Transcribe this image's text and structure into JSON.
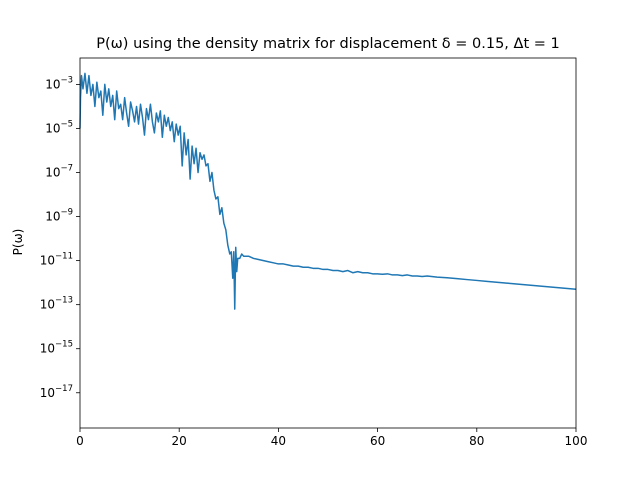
{
  "chart_data": {
    "type": "line",
    "title": "P(ω) using the density matrix for displacement δ = 0.15, Δt = 1",
    "xlabel": "",
    "ylabel": "P(ω)",
    "xlim": [
      0,
      100
    ],
    "ylim_log10": [
      -18.6,
      -1.8
    ],
    "yscale": "log",
    "grid": false,
    "x_ticks": [
      0,
      20,
      40,
      60,
      80,
      100
    ],
    "x_tick_labels": [
      "0",
      "20",
      "40",
      "60",
      "80",
      "100"
    ],
    "y_ticks_log10": [
      -3,
      -5,
      -7,
      -9,
      -11,
      -13,
      -15,
      -17
    ],
    "y_tick_labels": [
      {
        "base": "10",
        "exp": "−3"
      },
      {
        "base": "10",
        "exp": "−5"
      },
      {
        "base": "10",
        "exp": "−7"
      },
      {
        "base": "10",
        "exp": "−9"
      },
      {
        "base": "10",
        "exp": "−11"
      },
      {
        "base": "10",
        "exp": "−13"
      },
      {
        "base": "10",
        "exp": "−15"
      },
      {
        "base": "10",
        "exp": "−17"
      }
    ],
    "series": [
      {
        "color": "#1f77b4",
        "x": [
          0,
          0.1,
          0.3,
          0.6,
          1.0,
          1.4,
          1.8,
          2.2,
          2.6,
          3.0,
          3.4,
          3.8,
          4.2,
          4.6,
          5.0,
          5.4,
          5.8,
          6.2,
          6.6,
          7.0,
          7.4,
          7.8,
          8.2,
          8.6,
          9.0,
          9.4,
          9.8,
          10.2,
          10.6,
          11.0,
          11.4,
          11.8,
          12.2,
          12.6,
          13.0,
          13.4,
          13.8,
          14.2,
          14.6,
          15.0,
          15.4,
          15.8,
          16.2,
          16.6,
          17.0,
          17.4,
          17.8,
          18.2,
          18.6,
          19.0,
          19.4,
          19.8,
          20.2,
          20.6,
          21.0,
          21.4,
          21.8,
          22.2,
          22.6,
          23.0,
          23.4,
          23.8,
          24.2,
          24.6,
          25.0,
          25.4,
          25.8,
          26.2,
          26.6,
          27.0,
          27.4,
          27.8,
          28.2,
          28.6,
          29.0,
          29.4,
          29.8,
          30.2,
          30.5,
          30.8,
          31.0,
          31.2,
          31.4,
          31.6,
          31.8,
          32.2,
          32.6,
          33.0,
          33.4,
          34.0,
          35.0,
          36.0,
          37.0,
          38.0,
          39.0,
          40.0,
          41.0,
          42.0,
          43.0,
          44.0,
          45.0,
          46.0,
          47.0,
          48.0,
          49.0,
          50.0,
          51.0,
          52.0,
          53.0,
          54.0,
          55.0,
          56.0,
          57.0,
          58.0,
          59.0,
          60.0,
          61.0,
          62.0,
          63.0,
          64.0,
          65.0,
          66.0,
          67.0,
          68.0,
          69.0,
          70.0,
          72.0,
          74.0,
          76.0,
          78.0,
          80.0,
          82.0,
          84.0,
          86.0,
          88.0,
          90.0,
          92.0,
          94.0,
          96.0,
          98.0,
          100.0
        ],
        "log10_y": [
          -5.0,
          -3.6,
          -2.6,
          -3.2,
          -2.5,
          -3.4,
          -2.6,
          -3.5,
          -3.0,
          -4.0,
          -2.9,
          -3.6,
          -3.3,
          -4.4,
          -3.0,
          -3.8,
          -3.2,
          -4.0,
          -3.5,
          -4.6,
          -3.3,
          -4.1,
          -3.9,
          -4.6,
          -3.6,
          -4.3,
          -4.9,
          -3.8,
          -4.2,
          -4.7,
          -4.0,
          -4.8,
          -3.9,
          -4.5,
          -5.3,
          -4.1,
          -4.6,
          -3.9,
          -4.7,
          -5.2,
          -4.3,
          -4.7,
          -4.2,
          -5.4,
          -4.4,
          -4.9,
          -4.5,
          -5.1,
          -4.7,
          -5.6,
          -4.8,
          -5.3,
          -4.9,
          -6.7,
          -5.2,
          -6.2,
          -5.5,
          -7.3,
          -5.8,
          -6.6,
          -5.9,
          -7.0,
          -6.1,
          -6.4,
          -6.2,
          -6.7,
          -6.6,
          -7.4,
          -7.0,
          -7.8,
          -8.2,
          -8.1,
          -8.9,
          -8.6,
          -9.3,
          -9.6,
          -10.3,
          -10.7,
          -10.6,
          -11.8,
          -10.6,
          -13.2,
          -10.4,
          -11.5,
          -10.9,
          -10.9,
          -10.7,
          -10.8,
          -10.8,
          -10.8,
          -10.9,
          -10.95,
          -11.0,
          -11.05,
          -11.1,
          -11.15,
          -11.15,
          -11.2,
          -11.25,
          -11.25,
          -11.3,
          -11.3,
          -11.35,
          -11.35,
          -11.4,
          -11.4,
          -11.45,
          -11.45,
          -11.5,
          -11.45,
          -11.55,
          -11.5,
          -11.55,
          -11.55,
          -11.6,
          -11.6,
          -11.62,
          -11.6,
          -11.65,
          -11.65,
          -11.68,
          -11.65,
          -11.7,
          -11.7,
          -11.72,
          -11.7,
          -11.75,
          -11.78,
          -11.82,
          -11.86,
          -11.9,
          -11.94,
          -11.98,
          -12.02,
          -12.06,
          -12.1,
          -12.14,
          -12.18,
          -12.22,
          -12.26,
          -12.3
        ]
      }
    ]
  }
}
